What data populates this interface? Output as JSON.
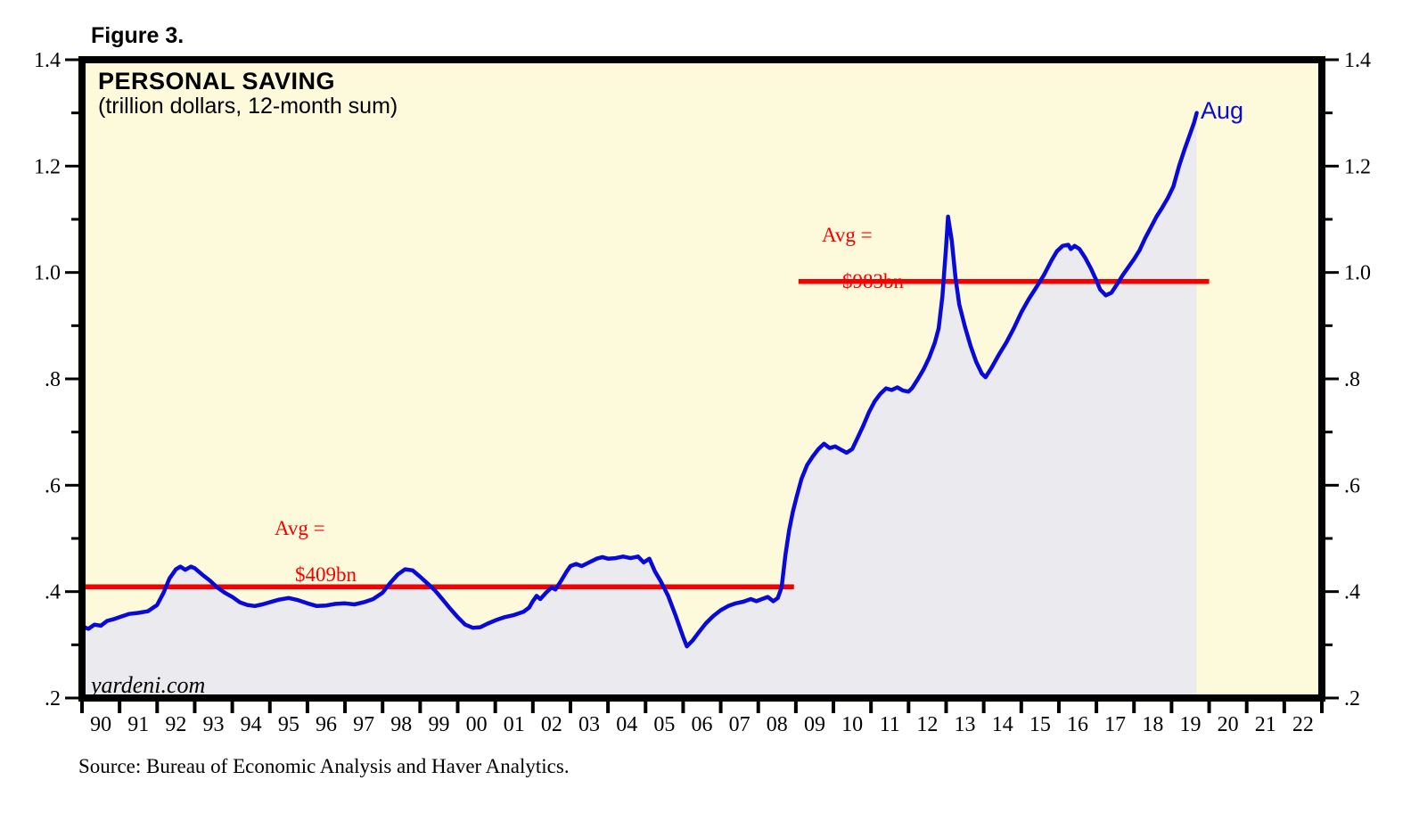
{
  "figure": {
    "label": "Figure 3."
  },
  "chart": {
    "title": "PERSONAL SAVING",
    "subtitle": "(trillion dollars, 12-month sum)",
    "watermark": "yardeni.com",
    "end_label": "Aug",
    "annotations": [
      {
        "id": "avg1",
        "line1": "Avg =",
        "line2": "$409bn"
      },
      {
        "id": "avg2",
        "line1": "Avg =",
        "line2": "$983bn"
      }
    ]
  },
  "source": "Source: Bureau of Economic Analysis and Haver Analytics.",
  "colors": {
    "plot_background": "#fcfada",
    "fill_under_line": "#ebebef",
    "line_blue": "#0a0ad8",
    "avg_red": "#f40000",
    "axis_black": "#000000"
  },
  "chart_data": {
    "type": "line",
    "title": "PERSONAL SAVING",
    "subtitle": "(trillion dollars, 12-month sum)",
    "x_axis": {
      "min_year": 1990,
      "max_year": 2023,
      "tick_labels": [
        "90",
        "91",
        "92",
        "93",
        "94",
        "95",
        "96",
        "97",
        "98",
        "99",
        "00",
        "01",
        "02",
        "03",
        "04",
        "05",
        "06",
        "07",
        "08",
        "09",
        "10",
        "11",
        "12",
        "13",
        "14",
        "15",
        "16",
        "17",
        "18",
        "19",
        "20",
        "21",
        "22"
      ]
    },
    "y_axis": {
      "min": 0.2,
      "max": 1.4,
      "majors": [
        {
          "value": 1.4,
          "label": "1.4"
        },
        {
          "value": 1.2,
          "label": "1.2"
        },
        {
          "value": 1.0,
          "label": "1.0"
        },
        {
          "value": 0.8,
          "label": ".8"
        },
        {
          "value": 0.6,
          "label": ".6"
        },
        {
          "value": 0.4,
          "label": ".4"
        },
        {
          "value": 0.2,
          "label": ".2"
        }
      ],
      "minors": [
        0.3,
        0.5,
        0.7,
        0.9,
        1.1,
        1.3
      ]
    },
    "avg_lines": [
      {
        "label": "Avg = $409bn",
        "value": 0.409,
        "from_year": 1990.02,
        "to_year": 2008.95
      },
      {
        "label": "Avg = $983bn",
        "value": 0.983,
        "from_year": 2009.07,
        "to_year": 2020.0
      }
    ],
    "last_point_label": {
      "text": "Aug",
      "year": 2019.67,
      "value": 1.3
    },
    "series": [
      {
        "name": "Personal saving, 12-month sum (trillion dollars)",
        "points": [
          [
            1990.0,
            0.335
          ],
          [
            1990.17,
            0.33
          ],
          [
            1990.33,
            0.338
          ],
          [
            1990.5,
            0.336
          ],
          [
            1990.67,
            0.345
          ],
          [
            1990.83,
            0.348
          ],
          [
            1991.0,
            0.352
          ],
          [
            1991.25,
            0.358
          ],
          [
            1991.5,
            0.36
          ],
          [
            1991.75,
            0.363
          ],
          [
            1992.0,
            0.375
          ],
          [
            1992.17,
            0.398
          ],
          [
            1992.33,
            0.425
          ],
          [
            1992.5,
            0.442
          ],
          [
            1992.62,
            0.447
          ],
          [
            1992.75,
            0.441
          ],
          [
            1992.9,
            0.447
          ],
          [
            1993.0,
            0.444
          ],
          [
            1993.2,
            0.432
          ],
          [
            1993.4,
            0.421
          ],
          [
            1993.6,
            0.408
          ],
          [
            1993.8,
            0.398
          ],
          [
            1994.0,
            0.39
          ],
          [
            1994.2,
            0.38
          ],
          [
            1994.4,
            0.375
          ],
          [
            1994.6,
            0.373
          ],
          [
            1994.8,
            0.376
          ],
          [
            1995.0,
            0.38
          ],
          [
            1995.25,
            0.385
          ],
          [
            1995.5,
            0.388
          ],
          [
            1995.75,
            0.384
          ],
          [
            1996.0,
            0.378
          ],
          [
            1996.25,
            0.373
          ],
          [
            1996.5,
            0.374
          ],
          [
            1996.75,
            0.377
          ],
          [
            1997.0,
            0.378
          ],
          [
            1997.25,
            0.376
          ],
          [
            1997.5,
            0.38
          ],
          [
            1997.75,
            0.386
          ],
          [
            1998.0,
            0.398
          ],
          [
            1998.2,
            0.416
          ],
          [
            1998.4,
            0.432
          ],
          [
            1998.6,
            0.442
          ],
          [
            1998.8,
            0.44
          ],
          [
            1999.0,
            0.428
          ],
          [
            1999.2,
            0.415
          ],
          [
            1999.4,
            0.402
          ],
          [
            1999.6,
            0.385
          ],
          [
            1999.8,
            0.368
          ],
          [
            2000.0,
            0.352
          ],
          [
            2000.2,
            0.338
          ],
          [
            2000.4,
            0.332
          ],
          [
            2000.6,
            0.333
          ],
          [
            2000.8,
            0.34
          ],
          [
            2001.0,
            0.346
          ],
          [
            2001.25,
            0.352
          ],
          [
            2001.5,
            0.356
          ],
          [
            2001.75,
            0.362
          ],
          [
            2001.9,
            0.37
          ],
          [
            2002.0,
            0.382
          ],
          [
            2002.1,
            0.392
          ],
          [
            2002.2,
            0.386
          ],
          [
            2002.35,
            0.398
          ],
          [
            2002.5,
            0.408
          ],
          [
            2002.6,
            0.404
          ],
          [
            2002.75,
            0.42
          ],
          [
            2002.9,
            0.438
          ],
          [
            2003.0,
            0.448
          ],
          [
            2003.15,
            0.452
          ],
          [
            2003.3,
            0.448
          ],
          [
            2003.5,
            0.455
          ],
          [
            2003.7,
            0.462
          ],
          [
            2003.85,
            0.465
          ],
          [
            2004.0,
            0.462
          ],
          [
            2004.2,
            0.463
          ],
          [
            2004.4,
            0.466
          ],
          [
            2004.6,
            0.463
          ],
          [
            2004.8,
            0.466
          ],
          [
            2004.95,
            0.455
          ],
          [
            2005.1,
            0.462
          ],
          [
            2005.25,
            0.438
          ],
          [
            2005.4,
            0.42
          ],
          [
            2005.6,
            0.392
          ],
          [
            2005.8,
            0.355
          ],
          [
            2006.0,
            0.315
          ],
          [
            2006.1,
            0.297
          ],
          [
            2006.25,
            0.308
          ],
          [
            2006.4,
            0.322
          ],
          [
            2006.6,
            0.34
          ],
          [
            2006.8,
            0.354
          ],
          [
            2007.0,
            0.365
          ],
          [
            2007.2,
            0.373
          ],
          [
            2007.4,
            0.378
          ],
          [
            2007.6,
            0.381
          ],
          [
            2007.8,
            0.386
          ],
          [
            2007.95,
            0.382
          ],
          [
            2008.1,
            0.386
          ],
          [
            2008.25,
            0.39
          ],
          [
            2008.4,
            0.382
          ],
          [
            2008.52,
            0.388
          ],
          [
            2008.62,
            0.408
          ],
          [
            2008.72,
            0.468
          ],
          [
            2008.82,
            0.515
          ],
          [
            2008.92,
            0.55
          ],
          [
            2009.02,
            0.578
          ],
          [
            2009.15,
            0.612
          ],
          [
            2009.3,
            0.638
          ],
          [
            2009.45,
            0.654
          ],
          [
            2009.6,
            0.668
          ],
          [
            2009.75,
            0.678
          ],
          [
            2009.9,
            0.67
          ],
          [
            2010.05,
            0.673
          ],
          [
            2010.2,
            0.667
          ],
          [
            2010.35,
            0.661
          ],
          [
            2010.5,
            0.668
          ],
          [
            2010.65,
            0.69
          ],
          [
            2010.8,
            0.713
          ],
          [
            2010.95,
            0.738
          ],
          [
            2011.1,
            0.758
          ],
          [
            2011.25,
            0.772
          ],
          [
            2011.4,
            0.782
          ],
          [
            2011.55,
            0.779
          ],
          [
            2011.7,
            0.784
          ],
          [
            2011.85,
            0.778
          ],
          [
            2012.0,
            0.776
          ],
          [
            2012.1,
            0.783
          ],
          [
            2012.25,
            0.8
          ],
          [
            2012.4,
            0.818
          ],
          [
            2012.55,
            0.84
          ],
          [
            2012.7,
            0.868
          ],
          [
            2012.8,
            0.895
          ],
          [
            2012.9,
            0.955
          ],
          [
            2013.0,
            1.05
          ],
          [
            2013.05,
            1.105
          ],
          [
            2013.15,
            1.06
          ],
          [
            2013.25,
            0.99
          ],
          [
            2013.35,
            0.94
          ],
          [
            2013.5,
            0.898
          ],
          [
            2013.65,
            0.862
          ],
          [
            2013.8,
            0.832
          ],
          [
            2013.95,
            0.81
          ],
          [
            2014.05,
            0.803
          ],
          [
            2014.2,
            0.82
          ],
          [
            2014.4,
            0.845
          ],
          [
            2014.6,
            0.868
          ],
          [
            2014.8,
            0.895
          ],
          [
            2015.0,
            0.925
          ],
          [
            2015.2,
            0.95
          ],
          [
            2015.4,
            0.972
          ],
          [
            2015.6,
            0.995
          ],
          [
            2015.8,
            1.022
          ],
          [
            2015.95,
            1.04
          ],
          [
            2016.1,
            1.05
          ],
          [
            2016.25,
            1.052
          ],
          [
            2016.32,
            1.044
          ],
          [
            2016.42,
            1.05
          ],
          [
            2016.55,
            1.044
          ],
          [
            2016.7,
            1.028
          ],
          [
            2016.85,
            1.008
          ],
          [
            2017.0,
            0.985
          ],
          [
            2017.1,
            0.968
          ],
          [
            2017.25,
            0.957
          ],
          [
            2017.4,
            0.962
          ],
          [
            2017.55,
            0.978
          ],
          [
            2017.7,
            0.995
          ],
          [
            2017.85,
            1.01
          ],
          [
            2018.0,
            1.025
          ],
          [
            2018.15,
            1.042
          ],
          [
            2018.3,
            1.065
          ],
          [
            2018.45,
            1.085
          ],
          [
            2018.6,
            1.105
          ],
          [
            2018.75,
            1.122
          ],
          [
            2018.9,
            1.14
          ],
          [
            2019.05,
            1.162
          ],
          [
            2019.2,
            1.2
          ],
          [
            2019.35,
            1.232
          ],
          [
            2019.5,
            1.262
          ],
          [
            2019.6,
            1.282
          ],
          [
            2019.67,
            1.3
          ]
        ]
      }
    ]
  }
}
